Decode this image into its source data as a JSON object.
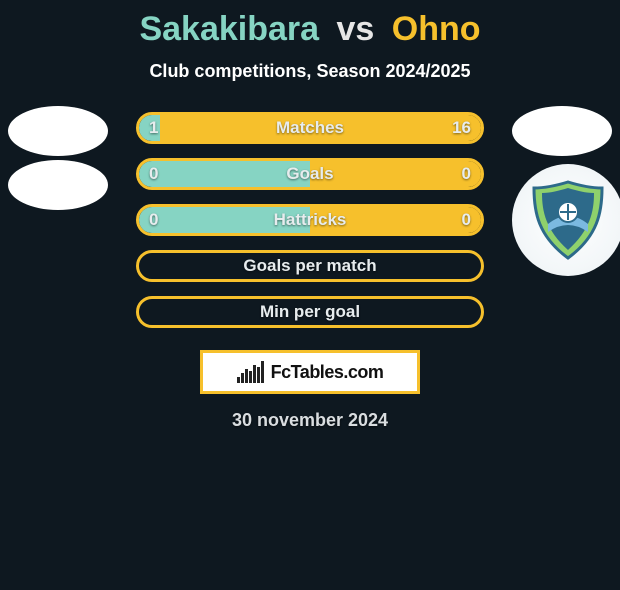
{
  "background_color": "#0e1820",
  "title": {
    "player_a": "Sakakibara",
    "vs": "vs",
    "player_b": "Ohno",
    "color_a": "#86d4c3",
    "color_vs": "#e6e6e6",
    "color_b": "#f6c02c",
    "fontsize": 34
  },
  "subtitle": {
    "text": "Club competitions, Season 2024/2025",
    "color": "#ffffff",
    "fontsize": 18
  },
  "badges": {
    "left_1_bg": "#ffffff",
    "left_2_bg": "#ffffff",
    "right_bg": "#ffffff",
    "crest_primary": "#2d6a8a",
    "crest_secondary": "#8fd16c",
    "crest_accent": "#ffffff"
  },
  "rows": [
    {
      "label": "Matches",
      "left": "1",
      "right": "16",
      "left_pct": 6,
      "right_pct": 94
    },
    {
      "label": "Goals",
      "left": "0",
      "right": "0",
      "left_pct": 50,
      "right_pct": 50
    },
    {
      "label": "Hattricks",
      "left": "0",
      "right": "0",
      "left_pct": 50,
      "right_pct": 50
    },
    {
      "label": "Goals per match",
      "left": "",
      "right": "",
      "left_pct": 50,
      "right_pct": 50
    },
    {
      "label": "Min per goal",
      "left": "",
      "right": "",
      "left_pct": 50,
      "right_pct": 50
    }
  ],
  "row_style": {
    "border_color": "#f6c02c",
    "fill_left_color": "#86d4c3",
    "fill_right_color": "#f6c02c",
    "label_color": "#e7ecee",
    "value_color": "#e7ecee",
    "label_fontsize": 17,
    "value_fontsize": 17
  },
  "brand": {
    "text": "FcTables.com",
    "border_color": "#f6c02c",
    "text_color": "#111111",
    "bar_colors": [
      "#222222",
      "#222222",
      "#222222",
      "#222222",
      "#222222",
      "#222222",
      "#222222"
    ],
    "fontsize": 18
  },
  "date": {
    "text": "30 november 2024",
    "color": "#d9dde0",
    "fontsize": 18
  }
}
